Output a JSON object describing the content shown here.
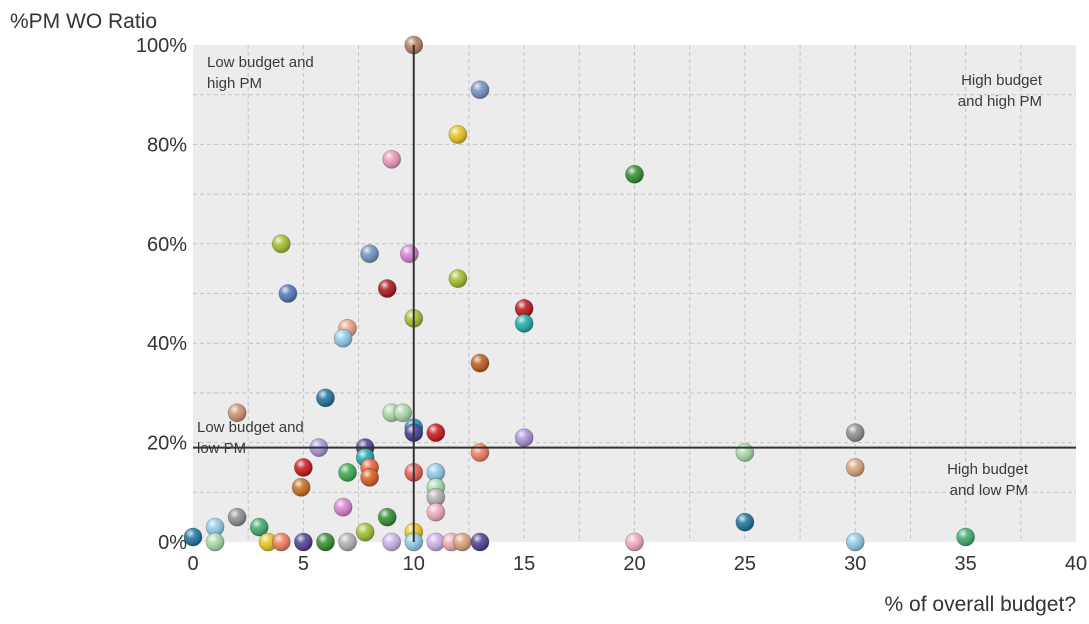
{
  "chart_data": {
    "type": "scatter",
    "ylabel": "%PM WO Ratio",
    "xlabel": "% of overall budget?",
    "xlim": [
      0,
      40
    ],
    "ylim": [
      0,
      100
    ],
    "x_ticks": [
      "0",
      "5",
      "10",
      "15",
      "20",
      "25",
      "30",
      "35",
      "40"
    ],
    "y_ticks": [
      "0%",
      "20%",
      "40%",
      "60%",
      "80%",
      "100%"
    ],
    "grid": true,
    "legend": "none",
    "reference_lines": {
      "x": 10,
      "y": 19
    },
    "quadrant_labels": {
      "top_left": [
        "Low budget and",
        "high PM"
      ],
      "top_right": [
        "High budget",
        "and high PM"
      ],
      "bottom_left": [
        "Low budget and",
        "low PM"
      ],
      "bottom_right": [
        "High budget",
        "and low PM"
      ]
    },
    "points": [
      {
        "x": 10,
        "y": 100,
        "color": "#b07a5a"
      },
      {
        "x": 13,
        "y": 91,
        "color": "#6f8fbf"
      },
      {
        "x": 12,
        "y": 82,
        "color": "#e8c21a"
      },
      {
        "x": 9,
        "y": 77,
        "color": "#e896b8"
      },
      {
        "x": 20,
        "y": 74,
        "color": "#2e8b2e"
      },
      {
        "x": 4,
        "y": 60,
        "color": "#9cbf2a"
      },
      {
        "x": 8,
        "y": 58,
        "color": "#6f8fbf"
      },
      {
        "x": 9.8,
        "y": 58,
        "color": "#d77fcf"
      },
      {
        "x": 12,
        "y": 53,
        "color": "#9cbf2a"
      },
      {
        "x": 8.8,
        "y": 51,
        "color": "#a8121a"
      },
      {
        "x": 4.3,
        "y": 50,
        "color": "#4f74b8"
      },
      {
        "x": 15,
        "y": 47,
        "color": "#b8121a"
      },
      {
        "x": 10,
        "y": 45,
        "color": "#9cbf2a"
      },
      {
        "x": 15,
        "y": 44,
        "color": "#1aa8a8"
      },
      {
        "x": 7,
        "y": 43,
        "color": "#e8a080"
      },
      {
        "x": 6.8,
        "y": 41,
        "color": "#8ec8e8"
      },
      {
        "x": 13,
        "y": 36,
        "color": "#b85a1a"
      },
      {
        "x": 6,
        "y": 29,
        "color": "#1a6f9c"
      },
      {
        "x": 2,
        "y": 26,
        "color": "#c8906a"
      },
      {
        "x": 9,
        "y": 26,
        "color": "#a8d8a8"
      },
      {
        "x": 9.5,
        "y": 26,
        "color": "#a8d8a8"
      },
      {
        "x": 10,
        "y": 23,
        "color": "#1a8fb8"
      },
      {
        "x": 11,
        "y": 22,
        "color": "#c8121a"
      },
      {
        "x": 10,
        "y": 22,
        "color": "#3a3a8f"
      },
      {
        "x": 15,
        "y": 21,
        "color": "#a890d8"
      },
      {
        "x": 30,
        "y": 22,
        "color": "#8c8c8c"
      },
      {
        "x": 5.7,
        "y": 19,
        "color": "#a890d8"
      },
      {
        "x": 7.8,
        "y": 19,
        "color": "#4a3a8f"
      },
      {
        "x": 13,
        "y": 18,
        "color": "#f07a5a"
      },
      {
        "x": 25,
        "y": 18,
        "color": "#a8d8a8"
      },
      {
        "x": 7.8,
        "y": 17,
        "color": "#1aa8a8"
      },
      {
        "x": 5,
        "y": 15,
        "color": "#c8121a"
      },
      {
        "x": 7,
        "y": 14,
        "color": "#3aa84a"
      },
      {
        "x": 8,
        "y": 15,
        "color": "#f05a3a"
      },
      {
        "x": 8,
        "y": 13,
        "color": "#d85a1a"
      },
      {
        "x": 10,
        "y": 14,
        "color": "#e85a4a"
      },
      {
        "x": 11,
        "y": 14,
        "color": "#8ec8e8"
      },
      {
        "x": 30,
        "y": 15,
        "color": "#d8a078"
      },
      {
        "x": 4.9,
        "y": 11,
        "color": "#c86a1a"
      },
      {
        "x": 11,
        "y": 11,
        "color": "#a8d8a8"
      },
      {
        "x": 11,
        "y": 9,
        "color": "#b0b0b0"
      },
      {
        "x": 6.8,
        "y": 7,
        "color": "#d77fcf"
      },
      {
        "x": 11,
        "y": 6,
        "color": "#f0a8b8"
      },
      {
        "x": 2,
        "y": 5,
        "color": "#8c8c8c"
      },
      {
        "x": 8.8,
        "y": 5,
        "color": "#2e8b2e"
      },
      {
        "x": 25,
        "y": 4,
        "color": "#1a6f9c"
      },
      {
        "x": 1,
        "y": 3,
        "color": "#8ec8e8"
      },
      {
        "x": 3,
        "y": 3,
        "color": "#3aa86a"
      },
      {
        "x": 7.8,
        "y": 2,
        "color": "#9cbf2a"
      },
      {
        "x": 10,
        "y": 2,
        "color": "#e8c21a"
      },
      {
        "x": 0,
        "y": 1,
        "color": "#1a6f9c"
      },
      {
        "x": 1,
        "y": 0,
        "color": "#a8d8a8"
      },
      {
        "x": 3.4,
        "y": 0,
        "color": "#e8c21a"
      },
      {
        "x": 4,
        "y": 0,
        "color": "#f07a5a"
      },
      {
        "x": 5,
        "y": 0,
        "color": "#4a3a8f"
      },
      {
        "x": 6,
        "y": 0,
        "color": "#2e8b2e"
      },
      {
        "x": 7,
        "y": 0,
        "color": "#b0b0b0"
      },
      {
        "x": 9,
        "y": 0,
        "color": "#c8b0e8"
      },
      {
        "x": 10,
        "y": 0,
        "color": "#8ec8e8"
      },
      {
        "x": 11,
        "y": 0,
        "color": "#c8b0e8"
      },
      {
        "x": 11.7,
        "y": 0,
        "color": "#f0a8b8"
      },
      {
        "x": 12.2,
        "y": 0,
        "color": "#d8a078"
      },
      {
        "x": 13,
        "y": 0,
        "color": "#4a3a8f"
      },
      {
        "x": 20,
        "y": 0,
        "color": "#f0a8b8"
      },
      {
        "x": 30,
        "y": 0,
        "color": "#8ec8e8"
      },
      {
        "x": 35,
        "y": 1,
        "color": "#3aa86a"
      }
    ]
  }
}
